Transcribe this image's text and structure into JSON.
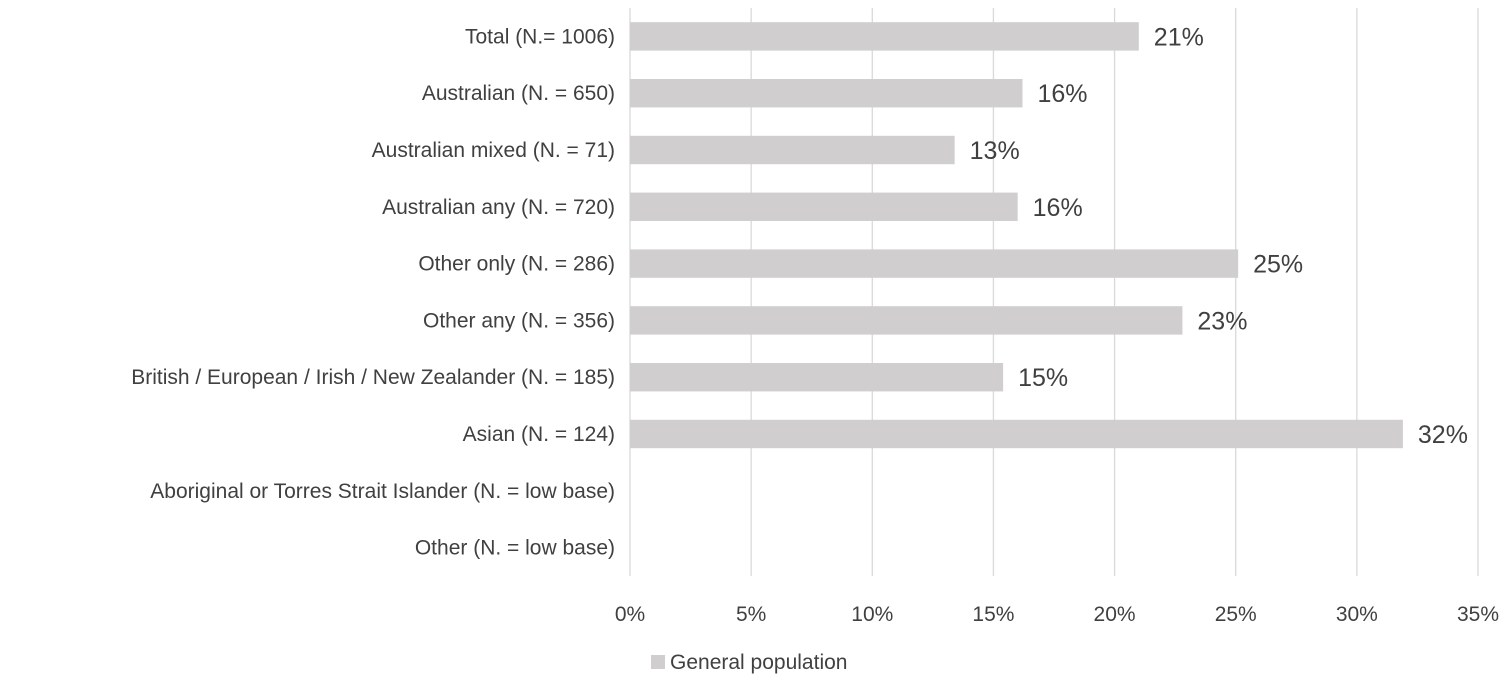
{
  "chart_data": {
    "type": "bar",
    "orientation": "horizontal",
    "categories": [
      "Total (N.= 1006)",
      "Australian (N. = 650)",
      "Australian mixed (N. = 71)",
      "Australian any (N. = 720)",
      "Other only (N. = 286)",
      "Other any (N. = 356)",
      "British / European / Irish / New Zealander (N. = 185)",
      "Asian (N. = 124)",
      "Aboriginal or Torres Strait Islander (N. = low base)",
      "Other (N. = low base)"
    ],
    "series": [
      {
        "name": "General population",
        "values": [
          21,
          16.2,
          13.4,
          16,
          25.1,
          22.8,
          15.4,
          31.9,
          null,
          null
        ],
        "data_labels": [
          "21%",
          "16%",
          "13%",
          "16%",
          "25%",
          "23%",
          "15%",
          "32%",
          "",
          ""
        ]
      }
    ],
    "xlim": [
      0,
      35
    ],
    "x_ticks": [
      0,
      5,
      10,
      15,
      20,
      25,
      30,
      35
    ],
    "x_tick_labels": [
      "0%",
      "5%",
      "10%",
      "15%",
      "20%",
      "25%",
      "30%",
      "35%"
    ],
    "gridlines": "vertical",
    "legend_position": "bottom",
    "colors": {
      "bar": "#d0cece",
      "grid": "#d9d9d9",
      "text": "#404040"
    }
  }
}
